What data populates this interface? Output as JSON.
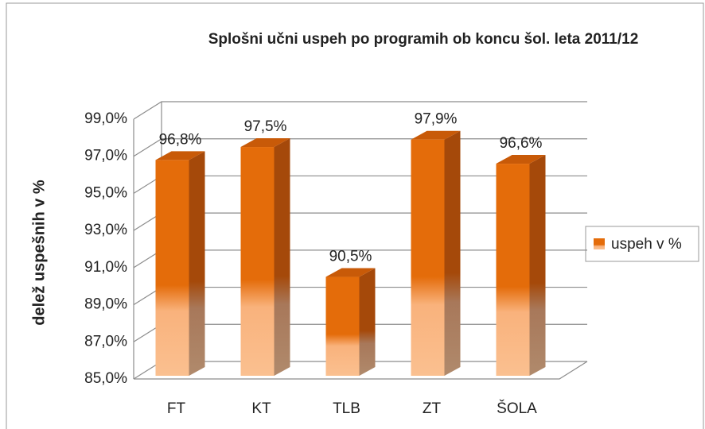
{
  "chart_data": {
    "type": "bar",
    "title": "Splošni učni uspeh po programih ob koncu šol. leta 2011/12",
    "y_label": "delež uspešnih v %",
    "categories": [
      "FT",
      "KT",
      "TLB",
      "ZT",
      "ŠOLA"
    ],
    "series": [
      {
        "name": "uspeh v %",
        "color": "#e46c0a",
        "values": [
          96.8,
          97.5,
          90.5,
          97.9,
          96.6
        ],
        "value_labels": [
          "96,8%",
          "97,5%",
          "90,5%",
          "97,9%",
          "96,6%"
        ]
      }
    ],
    "ylim": [
      85,
      99
    ],
    "yticks": [
      {
        "value": 85,
        "label": "85,0%"
      },
      {
        "value": 87,
        "label": "87,0%"
      },
      {
        "value": 89,
        "label": "89,0%"
      },
      {
        "value": 91,
        "label": "91,0%"
      },
      {
        "value": 93,
        "label": "93,0%"
      },
      {
        "value": 95,
        "label": "95,0%"
      },
      {
        "value": 97,
        "label": "97,0%"
      },
      {
        "value": 99,
        "label": "99,0%"
      }
    ],
    "grid": true,
    "legend": "right"
  }
}
